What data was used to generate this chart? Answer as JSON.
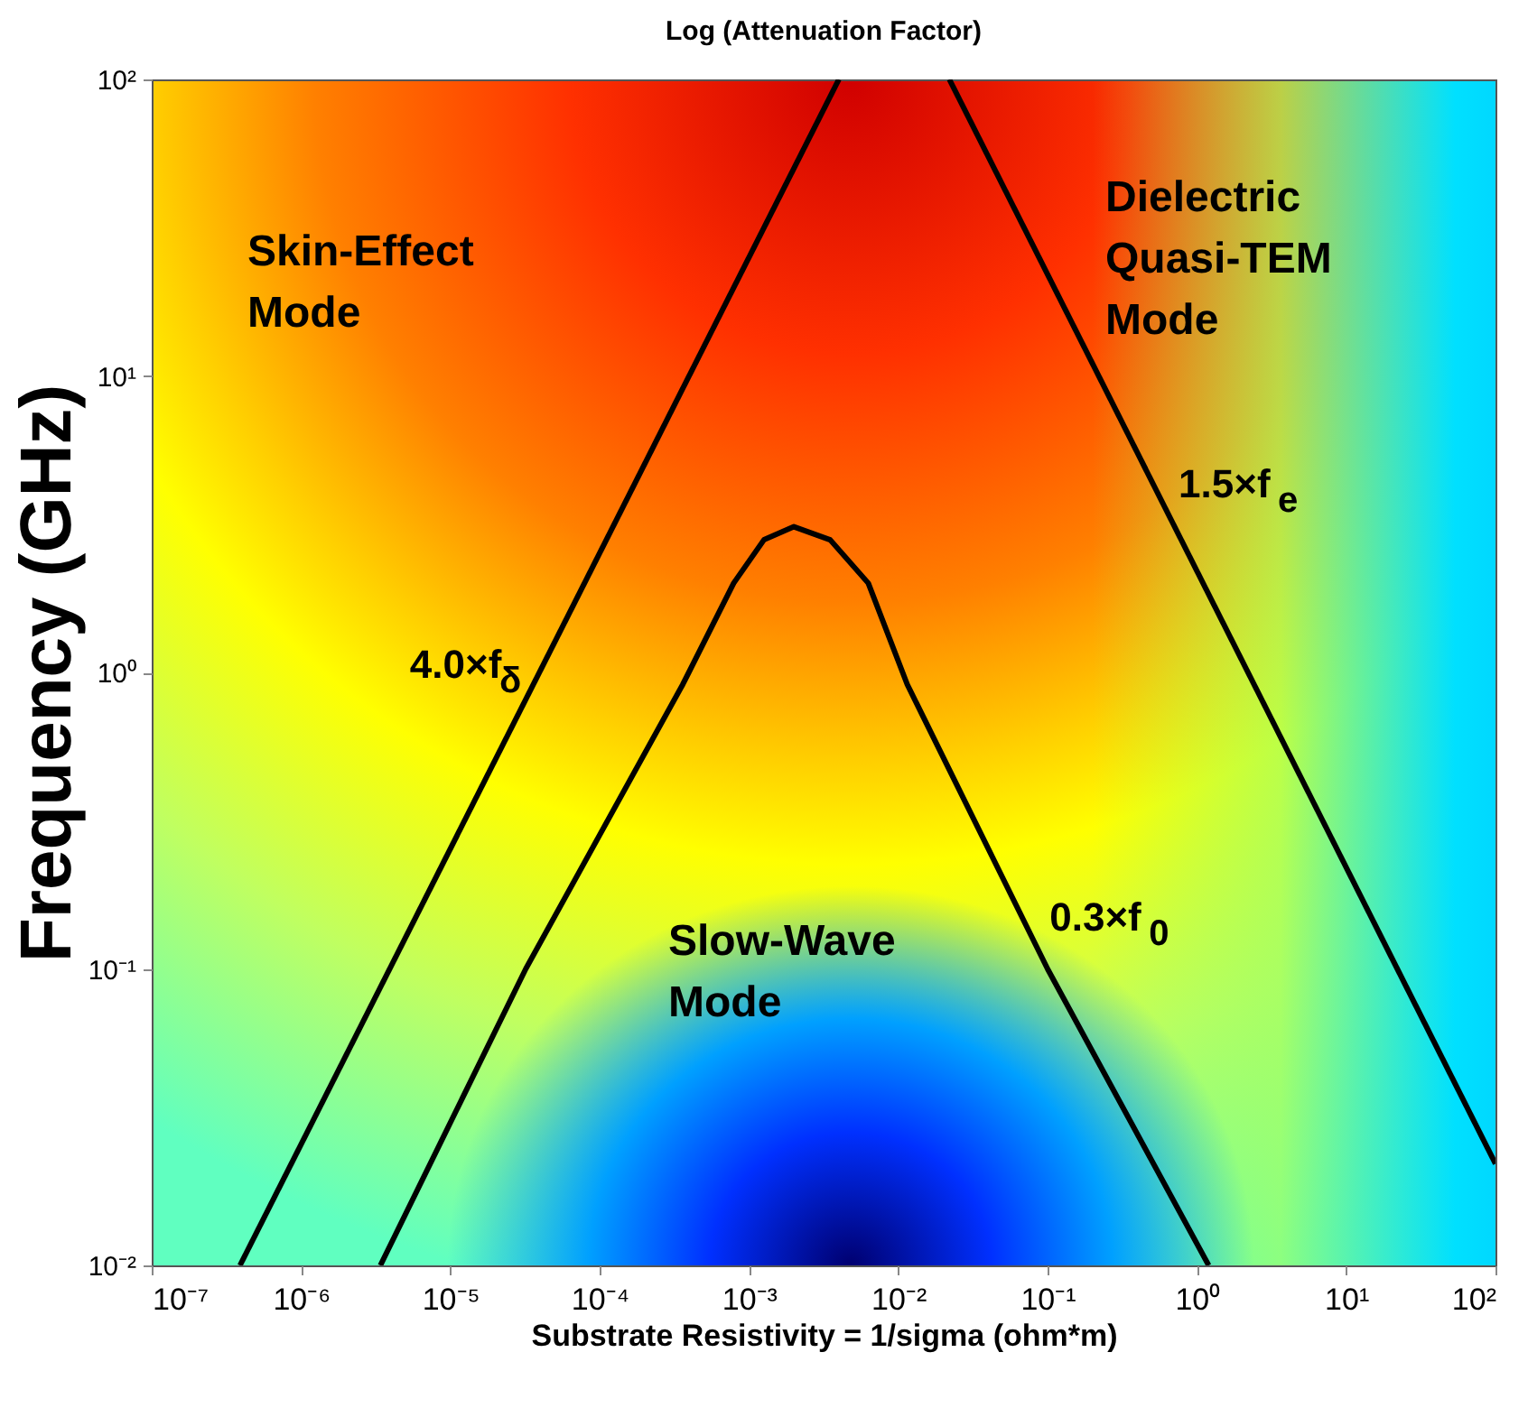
{
  "chart_data": {
    "type": "line",
    "title": "Log (Attenuation Factor)",
    "xlabel": "Substrate Resistivity = 1/sigma (ohm*m)",
    "ylabel": "Frequency (GHz)",
    "log": "xy",
    "xlim": [
      1e-07,
      100
    ],
    "ylim": [
      0.01,
      100
    ],
    "xticks": [
      {
        "value": 1e-07,
        "label": "10⁻⁷"
      },
      {
        "value": 1e-06,
        "label": "10⁻⁶"
      },
      {
        "value": 1e-05,
        "label": "10⁻⁵"
      },
      {
        "value": 0.0001,
        "label": "10⁻⁴"
      },
      {
        "value": 0.001,
        "label": "10⁻³"
      },
      {
        "value": 0.01,
        "label": "10⁻²"
      },
      {
        "value": 0.1,
        "label": "10⁻¹"
      },
      {
        "value": 1,
        "label": "10⁰"
      },
      {
        "value": 10,
        "label": "10¹"
      },
      {
        "value": 100,
        "label": "10²"
      }
    ],
    "yticks": [
      {
        "value": 0.01,
        "label": "10⁻²"
      },
      {
        "value": 0.1,
        "label": "10⁻¹"
      },
      {
        "value": 1,
        "label": "10⁰"
      },
      {
        "value": 10,
        "label": "10¹"
      },
      {
        "value": 100,
        "label": "10²"
      }
    ],
    "series": [
      {
        "name": "4.0×f$_{δ}$",
        "color": "#000000",
        "x": [
          3.9e-07,
          0.004
        ],
        "values": [
          0.01,
          100
        ]
      },
      {
        "name": "0.3×f$_{0}$",
        "color": "#000000",
        "x": [
          3.4e-06,
          3.2e-05,
          0.00036,
          0.00079,
          0.00126,
          0.002,
          0.0035,
          0.0063,
          0.0115,
          0.1,
          1.2
        ],
        "values": [
          0.01,
          0.1,
          0.91,
          2.0,
          2.8,
          3.1,
          2.8,
          2.0,
          0.91,
          0.1,
          0.01
        ]
      },
      {
        "name": "1.5×f$_{e}$",
        "color": "#000000",
        "x": [
          0.022,
          100
        ],
        "values": [
          100,
          0.022
        ]
      }
    ],
    "annotations": [
      "Skin-Effect Mode",
      "Dielectric Quasi-TEM Mode",
      "Slow-Wave Mode"
    ]
  }
}
